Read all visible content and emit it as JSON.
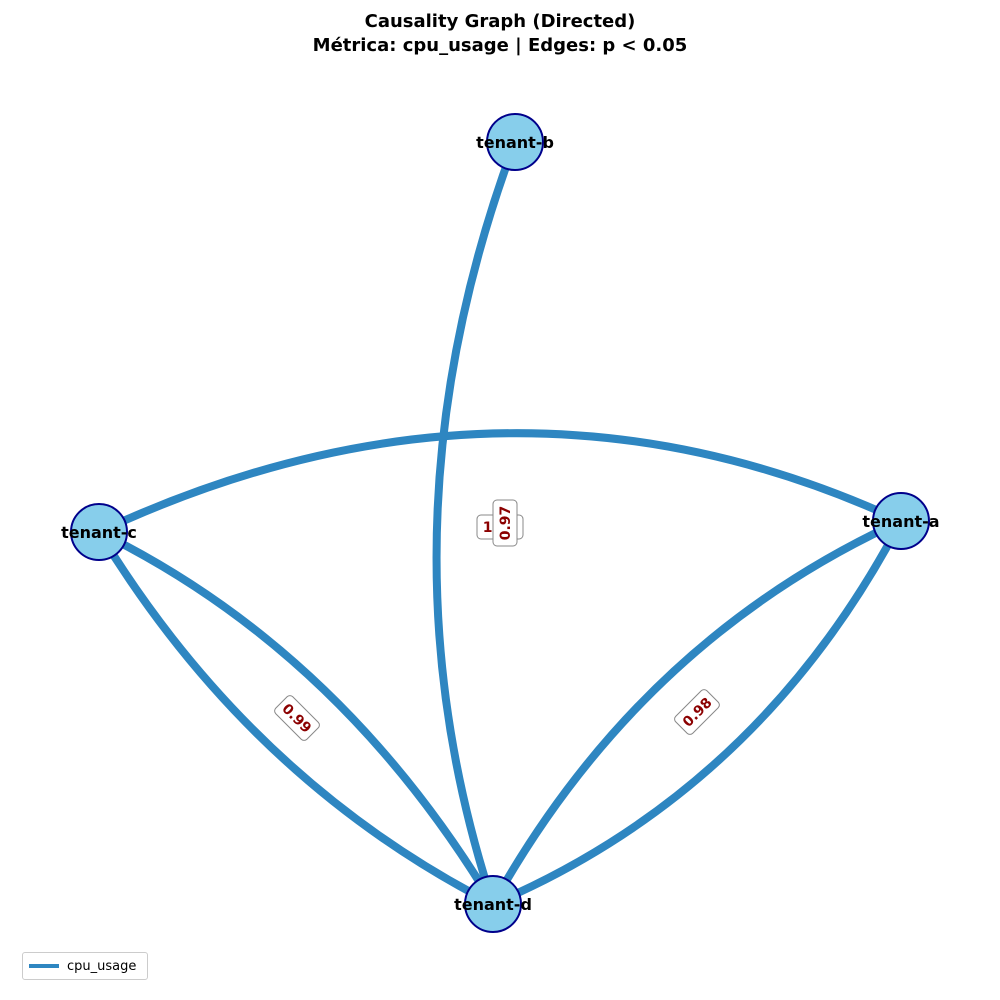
{
  "title": {
    "line1": "Causality Graph (Directed)",
    "line2": "Métrica: cpu_usage | Edges: p < 0.05"
  },
  "colors": {
    "node_fill": "#87ceeb",
    "node_stroke": "#00008b",
    "edge": "#2e86c1",
    "edge_label": "#8b0000"
  },
  "nodes": [
    {
      "id": "tenant-a",
      "label": "tenant-a"
    },
    {
      "id": "tenant-b",
      "label": "tenant-b"
    },
    {
      "id": "tenant-c",
      "label": "tenant-c"
    },
    {
      "id": "tenant-d",
      "label": "tenant-d"
    }
  ],
  "edges": [
    {
      "source": "tenant-c",
      "target": "tenant-a"
    },
    {
      "source": "tenant-b",
      "target": "tenant-d"
    },
    {
      "source": "tenant-c",
      "target": "tenant-d",
      "label": "0.99"
    },
    {
      "source": "tenant-d",
      "target": "tenant-c"
    },
    {
      "source": "tenant-a",
      "target": "tenant-d",
      "label": "0.98"
    },
    {
      "source": "tenant-d",
      "target": "tenant-a"
    }
  ],
  "overlapping_labels": [
    "1.00",
    "0.97"
  ],
  "legend": {
    "label": "cpu_usage"
  }
}
